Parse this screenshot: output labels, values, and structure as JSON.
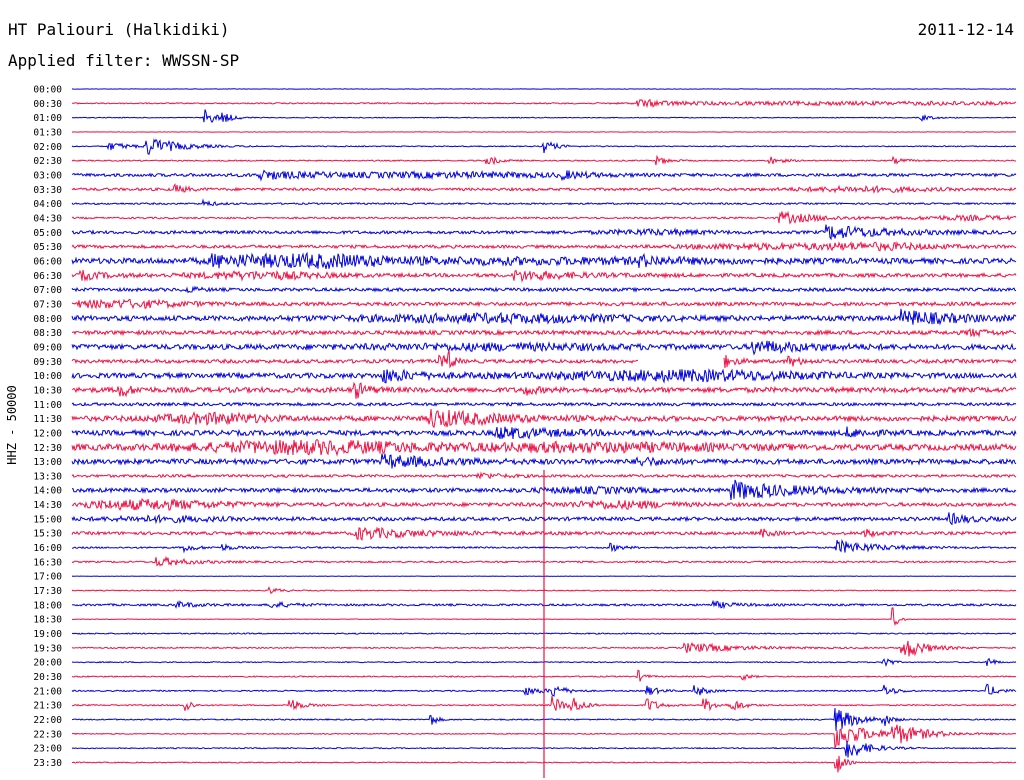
{
  "header": {
    "station": "HT Paliouri (Halkidiki)",
    "date": "2011-12-14",
    "filter": "Applied filter: WWSSN-SP"
  },
  "colors": {
    "line_even": "#0000dd",
    "line_odd": "#ee1144"
  },
  "chart_data": {
    "type": "line",
    "title": "HT Paliouri (Halkidiki)",
    "ylabel": "HHZ - 50000",
    "row_labels": [
      "00:00",
      "00:30",
      "01:00",
      "01:30",
      "02:00",
      "02:30",
      "03:00",
      "03:30",
      "04:00",
      "04:30",
      "05:00",
      "05:30",
      "06:00",
      "06:30",
      "07:00",
      "07:30",
      "08:00",
      "08:30",
      "09:00",
      "09:30",
      "10:00",
      "10:30",
      "11:00",
      "11:30",
      "12:00",
      "12:30",
      "13:00",
      "13:30",
      "14:00",
      "14:30",
      "15:00",
      "15:30",
      "16:00",
      "16:30",
      "17:00",
      "17:30",
      "18:00",
      "18:30",
      "19:00",
      "19:30",
      "20:00",
      "20:30",
      "21:00",
      "21:30",
      "22:00",
      "22:30",
      "23:00",
      "23:30"
    ],
    "rows": [
      {
        "noise": 0.2,
        "events": []
      },
      {
        "noise": 0.6,
        "events": [
          [
            0.6,
            4,
            0.03,
            "s"
          ],
          [
            0.78,
            1.5,
            0.1,
            "n"
          ],
          [
            0.95,
            1.2,
            0.05,
            "n"
          ]
        ]
      },
      {
        "noise": 0.4,
        "events": [
          [
            0.14,
            9,
            0.01,
            "s"
          ],
          [
            0.16,
            4,
            0.01,
            "s"
          ],
          [
            0.9,
            3,
            0.01,
            "s"
          ]
        ]
      },
      {
        "noise": 0.2,
        "events": []
      },
      {
        "noise": 0.5,
        "events": [
          [
            0.04,
            4,
            0.02,
            "s"
          ],
          [
            0.08,
            9,
            0.03,
            "s"
          ],
          [
            0.5,
            7,
            0.01,
            "s"
          ]
        ]
      },
      {
        "noise": 0.6,
        "events": [
          [
            0.44,
            5,
            0.01,
            "s"
          ],
          [
            0.62,
            4,
            0.01,
            "s"
          ],
          [
            0.74,
            4,
            0.01,
            "s"
          ],
          [
            0.87,
            3,
            0.01,
            "s"
          ]
        ]
      },
      {
        "noise": 1.5,
        "events": [
          [
            0.2,
            4,
            0.04,
            "s"
          ],
          [
            0.4,
            2,
            0.1,
            "n"
          ],
          [
            0.52,
            3,
            0.02,
            "s"
          ]
        ]
      },
      {
        "noise": 1.3,
        "events": [
          [
            0.11,
            4,
            0.01,
            "s"
          ],
          [
            0.84,
            2,
            0.05,
            "n"
          ]
        ]
      },
      {
        "noise": 0.8,
        "events": [
          [
            0.14,
            3,
            0.01,
            "s"
          ]
        ]
      },
      {
        "noise": 0.8,
        "events": [
          [
            0.75,
            6,
            0.04,
            "s"
          ],
          [
            0.95,
            2,
            0.04,
            "n"
          ]
        ]
      },
      {
        "noise": 1.5,
        "events": [
          [
            0.8,
            7,
            0.06,
            "s"
          ],
          [
            0.62,
            2,
            0.04,
            "n"
          ]
        ]
      },
      {
        "noise": 1.5,
        "events": [
          [
            0.72,
            2,
            0.05,
            "n"
          ],
          [
            0.85,
            3,
            0.05,
            "n"
          ]
        ]
      },
      {
        "noise": 2.5,
        "events": [
          [
            0.15,
            5,
            0.04,
            "s"
          ],
          [
            0.26,
            4,
            0.05,
            "n"
          ],
          [
            0.45,
            2,
            0.2,
            "n"
          ],
          [
            0.6,
            4,
            0.02,
            "s"
          ]
        ]
      },
      {
        "noise": 1.8,
        "events": [
          [
            0.01,
            4,
            0.02,
            "s"
          ],
          [
            0.2,
            3,
            0.05,
            "n"
          ],
          [
            0.47,
            5,
            0.05,
            "s"
          ]
        ]
      },
      {
        "noise": 1.6,
        "events": [
          [
            0.12,
            3,
            0.01,
            "s"
          ]
        ]
      },
      {
        "noise": 1.8,
        "events": [
          [
            0.05,
            3,
            0.05,
            "n"
          ]
        ]
      },
      {
        "noise": 2.5,
        "events": [
          [
            0.45,
            3,
            0.1,
            "n"
          ],
          [
            0.88,
            7,
            0.05,
            "s"
          ]
        ]
      },
      {
        "noise": 2.0,
        "events": [
          [
            0.95,
            3,
            0.02,
            "s"
          ]
        ]
      },
      {
        "noise": 2.5,
        "events": [
          [
            0.72,
            6,
            0.05,
            "s"
          ],
          [
            0.45,
            2,
            0.1,
            "n"
          ]
        ]
      },
      {
        "noise": 1.8,
        "events": [
          [
            0.39,
            9,
            0.004,
            "s"
          ],
          [
            0.4,
            9,
            0.004,
            "s"
          ],
          [
            0.69,
            6,
            0.01,
            "s"
          ],
          [
            0.76,
            5,
            0.01,
            "s"
          ]
        ],
        "gap": [
          0.6,
          0.69
        ]
      },
      {
        "noise": 2.5,
        "events": [
          [
            0.33,
            6,
            0.03,
            "s"
          ],
          [
            0.65,
            4,
            0.1,
            "n"
          ]
        ]
      },
      {
        "noise": 2.5,
        "events": [
          [
            0.05,
            7,
            0.01,
            "s"
          ],
          [
            0.3,
            8,
            0.01,
            "s"
          ],
          [
            0.48,
            4,
            0.01,
            "s"
          ]
        ]
      },
      {
        "noise": 1.5,
        "events": []
      },
      {
        "noise": 2.5,
        "events": [
          [
            0.38,
            9,
            0.06,
            "s"
          ],
          [
            0.15,
            4,
            0.04,
            "n"
          ]
        ]
      },
      {
        "noise": 2.5,
        "events": [
          [
            0.45,
            5,
            0.06,
            "s"
          ],
          [
            0.82,
            4,
            0.02,
            "s"
          ]
        ]
      },
      {
        "noise": 3.0,
        "events": [
          [
            0.25,
            5,
            0.08,
            "n"
          ],
          [
            0.55,
            3,
            0.1,
            "n"
          ]
        ]
      },
      {
        "noise": 2.5,
        "events": [
          [
            0.33,
            6,
            0.05,
            "s"
          ],
          [
            0.6,
            4,
            0.02,
            "s"
          ]
        ]
      },
      {
        "noise": 1.3,
        "events": [
          [
            0.43,
            3,
            0.02,
            "s"
          ]
        ]
      },
      {
        "noise": 2.0,
        "events": [
          [
            0.7,
            9,
            0.06,
            "s"
          ],
          [
            0.55,
            2,
            0.04,
            "n"
          ]
        ]
      },
      {
        "noise": 1.8,
        "events": [
          [
            0.08,
            4,
            0.06,
            "n"
          ],
          [
            0.58,
            3,
            0.04,
            "n"
          ]
        ]
      },
      {
        "noise": 1.8,
        "events": [
          [
            0.93,
            5,
            0.02,
            "s"
          ],
          [
            0.1,
            2,
            0.04,
            "n"
          ]
        ]
      },
      {
        "noise": 1.5,
        "events": [
          [
            0.3,
            6,
            0.06,
            "s"
          ],
          [
            0.73,
            4,
            0.01,
            "s"
          ],
          [
            0.84,
            4,
            0.01,
            "s"
          ]
        ]
      },
      {
        "noise": 0.8,
        "events": [
          [
            0.12,
            4,
            0.01,
            "s"
          ],
          [
            0.16,
            3,
            0.01,
            "s"
          ],
          [
            0.57,
            4,
            0.01,
            "s"
          ],
          [
            0.81,
            7,
            0.04,
            "s"
          ]
        ]
      },
      {
        "noise": 0.8,
        "events": [
          [
            0.09,
            5,
            0.03,
            "s"
          ]
        ]
      },
      {
        "noise": 0.2,
        "events": []
      },
      {
        "noise": 0.5,
        "events": [
          [
            0.21,
            3,
            0.01,
            "s"
          ]
        ]
      },
      {
        "noise": 1.0,
        "events": [
          [
            0.11,
            3,
            0.02,
            "s"
          ],
          [
            0.21,
            3,
            0.02,
            "s"
          ],
          [
            0.68,
            3,
            0.02,
            "s"
          ]
        ]
      },
      {
        "noise": 0.3,
        "events": [
          [
            0.87,
            12,
            0.004,
            "s"
          ]
        ]
      },
      {
        "noise": 0.6,
        "events": []
      },
      {
        "noise": 0.6,
        "events": [
          [
            0.65,
            5,
            0.05,
            "s"
          ],
          [
            0.88,
            12,
            0.02,
            "s"
          ]
        ]
      },
      {
        "noise": 0.5,
        "events": [
          [
            0.86,
            8,
            0.005,
            "s"
          ],
          [
            0.97,
            6,
            0.005,
            "s"
          ]
        ]
      },
      {
        "noise": 0.6,
        "events": [
          [
            0.6,
            6,
            0.005,
            "s"
          ],
          [
            0.71,
            5,
            0.005,
            "s"
          ]
        ]
      },
      {
        "noise": 0.6,
        "events": [
          [
            0.48,
            4,
            0.02,
            "s"
          ],
          [
            0.51,
            6,
            0.01,
            "s"
          ],
          [
            0.61,
            5,
            0.01,
            "s"
          ],
          [
            0.66,
            6,
            0.01,
            "s"
          ],
          [
            0.86,
            6,
            0.01,
            "s"
          ],
          [
            0.97,
            6,
            0.01,
            "s"
          ]
        ]
      },
      {
        "noise": 0.6,
        "events": [
          [
            0.12,
            10,
            0.004,
            "s"
          ],
          [
            0.23,
            8,
            0.01,
            "s"
          ],
          [
            0.51,
            9,
            0.01,
            "s"
          ],
          [
            0.53,
            8,
            0.01,
            "s"
          ],
          [
            0.61,
            7,
            0.01,
            "s"
          ],
          [
            0.67,
            7,
            0.01,
            "s"
          ],
          [
            0.7,
            6,
            0.01,
            "s"
          ]
        ]
      },
      {
        "noise": 0.6,
        "events": [
          [
            0.38,
            7,
            0.005,
            "s"
          ],
          [
            0.81,
            12,
            0.02,
            "s"
          ],
          [
            0.86,
            6,
            0.005,
            "s"
          ]
        ]
      },
      {
        "noise": 0.5,
        "events": [
          [
            0.81,
            14,
            0.03,
            "s"
          ],
          [
            0.87,
            10,
            0.03,
            "s"
          ]
        ]
      },
      {
        "noise": 0.5,
        "events": [
          [
            0.82,
            12,
            0.02,
            "s"
          ]
        ]
      },
      {
        "noise": 0.5,
        "events": [
          [
            0.81,
            12,
            0.006,
            "s"
          ]
        ]
      }
    ],
    "vertical_events": [
      {
        "x": 0.5,
        "row_from": 27,
        "row_to": 47
      }
    ]
  }
}
